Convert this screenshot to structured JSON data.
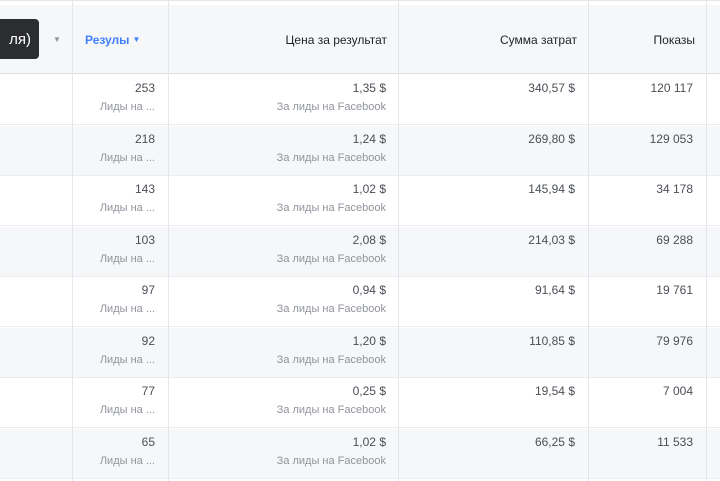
{
  "header": {
    "name_button": "ля)",
    "results": "Резулы",
    "cost_per_result": "Цена за результат",
    "amount_spent": "Сумма затрат",
    "impressions": "Показы"
  },
  "accent": "#4080ff",
  "rows": [
    {
      "results": "253",
      "results_sub": "Лиды на ...",
      "cost": "1,35 $",
      "cost_sub": "За лиды на Facebook",
      "spent": "340,57 $",
      "impressions": "120 117"
    },
    {
      "results": "218",
      "results_sub": "Лиды на ...",
      "cost": "1,24 $",
      "cost_sub": "За лиды на Facebook",
      "spent": "269,80 $",
      "impressions": "129 053"
    },
    {
      "results": "143",
      "results_sub": "Лиды на ...",
      "cost": "1,02 $",
      "cost_sub": "За лиды на Facebook",
      "spent": "145,94 $",
      "impressions": "34 178"
    },
    {
      "results": "103",
      "results_sub": "Лиды на ...",
      "cost": "2,08 $",
      "cost_sub": "За лиды на Facebook",
      "spent": "214,03 $",
      "impressions": "69 288"
    },
    {
      "results": "97",
      "results_sub": "Лиды на ...",
      "cost": "0,94 $",
      "cost_sub": "За лиды на Facebook",
      "spent": "91,64 $",
      "impressions": "19 761"
    },
    {
      "results": "92",
      "results_sub": "Лиды на ...",
      "cost": "1,20 $",
      "cost_sub": "За лиды на Facebook",
      "spent": "110,85 $",
      "impressions": "79 976"
    },
    {
      "results": "77",
      "results_sub": "Лиды на ...",
      "cost": "0,25 $",
      "cost_sub": "За лиды на Facebook",
      "spent": "19,54 $",
      "impressions": "7 004"
    },
    {
      "results": "65",
      "results_sub": "Лиды на ...",
      "cost": "1,02 $",
      "cost_sub": "За лиды на Facebook",
      "spent": "66,25 $",
      "impressions": "11 533"
    }
  ]
}
